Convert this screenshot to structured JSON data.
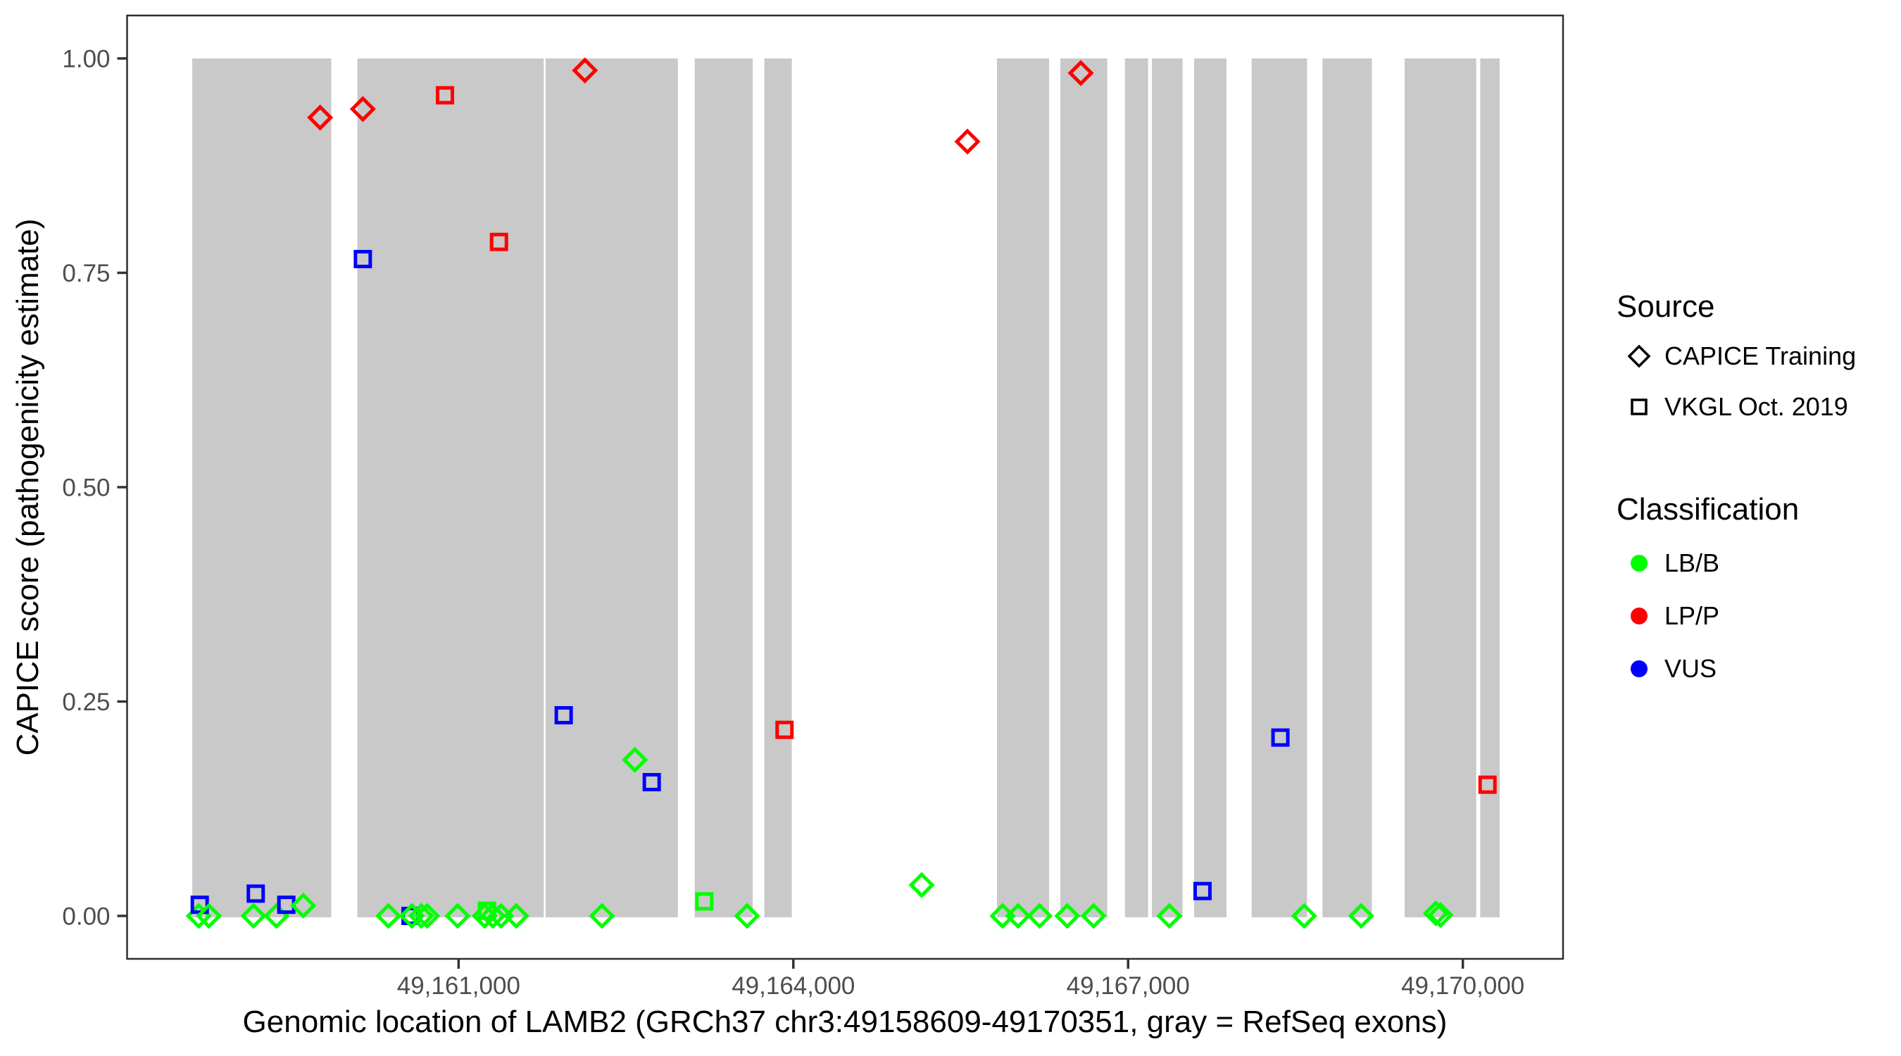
{
  "legend": {
    "source": {
      "title": "Source",
      "items": [
        {
          "label": "CAPICE Training",
          "marker": "diamond"
        },
        {
          "label": "VKGL Oct. 2019",
          "marker": "square"
        }
      ]
    },
    "classification": {
      "title": "Classification",
      "items": [
        {
          "label": "LB/B",
          "color": "#00FF00"
        },
        {
          "label": "LP/P",
          "color": "#FF0000"
        },
        {
          "label": "VUS",
          "color": "#0000FF"
        }
      ]
    }
  },
  "axes": {
    "x": {
      "label": "Genomic location of LAMB2 (GRCh37 chr3:49158609-49170351, gray = RefSeq exons)",
      "ticks": [
        {
          "value": 49161000,
          "label": "49,161,000"
        },
        {
          "value": 49164000,
          "label": "49,164,000"
        },
        {
          "value": 49167000,
          "label": "49,167,000"
        },
        {
          "value": 49170000,
          "label": "49,170,000"
        }
      ]
    },
    "y": {
      "label": "CAPICE score (pathogenicity estimate)",
      "ticks": [
        {
          "value": 1.0,
          "label": "1.00"
        },
        {
          "value": 0.75,
          "label": "0.75"
        },
        {
          "value": 0.5,
          "label": "0.50"
        },
        {
          "value": 0.25,
          "label": "0.25"
        },
        {
          "value": 0.0,
          "label": "0.00"
        }
      ]
    }
  },
  "colors": {
    "LB/B": "#00FF00",
    "LP/P": "#FF0000",
    "VUS": "#0000FF",
    "exon": "#C9C9C9",
    "panel_border": "#2E2E2E",
    "tick": "#333333",
    "tick_label": "#4D4D4D",
    "legend_glyph": "#000000"
  },
  "chart_data": {
    "type": "scatter",
    "gene": "LAMB2",
    "build": "GRCh37",
    "region": "chr3:49158609-49170351",
    "x_domain": [
      49158029,
      49170898
    ],
    "y_domain": [
      0,
      1
    ],
    "exons": [
      {
        "start": 49158613,
        "end": 49159859
      },
      {
        "start": 49160093,
        "end": 49161763
      },
      {
        "start": 49161780,
        "end": 49162965
      },
      {
        "start": 49163116,
        "end": 49163636
      },
      {
        "start": 49163740,
        "end": 49163986
      },
      {
        "start": 49165825,
        "end": 49166292
      },
      {
        "start": 49166393,
        "end": 49166813
      },
      {
        "start": 49166972,
        "end": 49167179
      },
      {
        "start": 49167213,
        "end": 49167488
      },
      {
        "start": 49167592,
        "end": 49167882
      },
      {
        "start": 49168107,
        "end": 49168604
      },
      {
        "start": 49168742,
        "end": 49169185
      },
      {
        "start": 49169478,
        "end": 49170120
      },
      {
        "start": 49170156,
        "end": 49170330
      }
    ],
    "points": [
      {
        "pos": 49158671,
        "score": 0.0,
        "source": "CAPICE Training",
        "classification": "LB/B"
      },
      {
        "pos": 49158680,
        "score": 0.013,
        "source": "VKGL Oct. 2019",
        "classification": "VUS"
      },
      {
        "pos": 49158762,
        "score": 0.0,
        "source": "CAPICE Training",
        "classification": "LB/B"
      },
      {
        "pos": 49159162,
        "score": 0.0,
        "source": "CAPICE Training",
        "classification": "LB/B"
      },
      {
        "pos": 49159182,
        "score": 0.026,
        "source": "VKGL Oct. 2019",
        "classification": "VUS"
      },
      {
        "pos": 49159368,
        "score": 0.0,
        "source": "CAPICE Training",
        "classification": "LB/B"
      },
      {
        "pos": 49159456,
        "score": 0.013,
        "source": "VKGL Oct. 2019",
        "classification": "VUS"
      },
      {
        "pos": 49159608,
        "score": 0.012,
        "source": "CAPICE Training",
        "classification": "LB/B"
      },
      {
        "pos": 49159759,
        "score": 0.931,
        "source": "CAPICE Training",
        "classification": "LP/P"
      },
      {
        "pos": 49160142,
        "score": 0.941,
        "source": "CAPICE Training",
        "classification": "LP/P"
      },
      {
        "pos": 49160142,
        "score": 0.766,
        "source": "VKGL Oct. 2019",
        "classification": "VUS"
      },
      {
        "pos": 49160371,
        "score": 0.0,
        "source": "CAPICE Training",
        "classification": "LB/B"
      },
      {
        "pos": 49160569,
        "score": 0.0,
        "source": "VKGL Oct. 2019",
        "classification": "VUS"
      },
      {
        "pos": 49160581,
        "score": 0.0,
        "source": "CAPICE Training",
        "classification": "LB/B"
      },
      {
        "pos": 49160665,
        "score": 0.0,
        "source": "CAPICE Training",
        "classification": "LB/B"
      },
      {
        "pos": 49160718,
        "score": 0.0,
        "source": "CAPICE Training",
        "classification": "LB/B"
      },
      {
        "pos": 49160878,
        "score": 0.957,
        "source": "VKGL Oct. 2019",
        "classification": "LP/P"
      },
      {
        "pos": 49160991,
        "score": 0.0,
        "source": "CAPICE Training",
        "classification": "LB/B"
      },
      {
        "pos": 49161233,
        "score": 0.0,
        "source": "CAPICE Training",
        "classification": "LB/B"
      },
      {
        "pos": 49161254,
        "score": 0.006,
        "source": "VKGL Oct. 2019",
        "classification": "LB/B"
      },
      {
        "pos": 49161307,
        "score": 0.0,
        "source": "CAPICE Training",
        "classification": "LB/B"
      },
      {
        "pos": 49161362,
        "score": 0.786,
        "source": "VKGL Oct. 2019",
        "classification": "LP/P"
      },
      {
        "pos": 49161380,
        "score": 0.0,
        "source": "CAPICE Training",
        "classification": "LB/B"
      },
      {
        "pos": 49161517,
        "score": 0.0,
        "source": "CAPICE Training",
        "classification": "LB/B"
      },
      {
        "pos": 49161942,
        "score": 0.234,
        "source": "VKGL Oct. 2019",
        "classification": "VUS"
      },
      {
        "pos": 49162132,
        "score": 0.986,
        "source": "CAPICE Training",
        "classification": "LP/P"
      },
      {
        "pos": 49162285,
        "score": 0.0,
        "source": "CAPICE Training",
        "classification": "LB/B"
      },
      {
        "pos": 49162580,
        "score": 0.182,
        "source": "CAPICE Training",
        "classification": "LB/B"
      },
      {
        "pos": 49162731,
        "score": 0.156,
        "source": "VKGL Oct. 2019",
        "classification": "VUS"
      },
      {
        "pos": 49163202,
        "score": 0.017,
        "source": "VKGL Oct. 2019",
        "classification": "LB/B"
      },
      {
        "pos": 49163585,
        "score": 0.0,
        "source": "CAPICE Training",
        "classification": "LB/B"
      },
      {
        "pos": 49163921,
        "score": 0.217,
        "source": "VKGL Oct. 2019",
        "classification": "LP/P"
      },
      {
        "pos": 49165150,
        "score": 0.036,
        "source": "CAPICE Training",
        "classification": "LB/B"
      },
      {
        "pos": 49165560,
        "score": 0.903,
        "source": "CAPICE Training",
        "classification": "LP/P"
      },
      {
        "pos": 49165875,
        "score": 0.0,
        "source": "CAPICE Training",
        "classification": "LB/B"
      },
      {
        "pos": 49166014,
        "score": 0.0,
        "source": "CAPICE Training",
        "classification": "LB/B"
      },
      {
        "pos": 49166207,
        "score": 0.0,
        "source": "CAPICE Training",
        "classification": "LB/B"
      },
      {
        "pos": 49166455,
        "score": 0.0,
        "source": "CAPICE Training",
        "classification": "LB/B"
      },
      {
        "pos": 49166576,
        "score": 0.983,
        "source": "CAPICE Training",
        "classification": "LP/P"
      },
      {
        "pos": 49166691,
        "score": 0.0,
        "source": "CAPICE Training",
        "classification": "LB/B"
      },
      {
        "pos": 49167370,
        "score": 0.0,
        "source": "CAPICE Training",
        "classification": "LB/B"
      },
      {
        "pos": 49167667,
        "score": 0.029,
        "source": "VKGL Oct. 2019",
        "classification": "VUS"
      },
      {
        "pos": 49168365,
        "score": 0.208,
        "source": "VKGL Oct. 2019",
        "classification": "VUS"
      },
      {
        "pos": 49168578,
        "score": 0.0,
        "source": "CAPICE Training",
        "classification": "LB/B"
      },
      {
        "pos": 49169089,
        "score": 0.0,
        "source": "CAPICE Training",
        "classification": "LB/B"
      },
      {
        "pos": 49169758,
        "score": 0.003,
        "source": "CAPICE Training",
        "classification": "LB/B"
      },
      {
        "pos": 49169800,
        "score": 0.001,
        "source": "CAPICE Training",
        "classification": "LB/B"
      },
      {
        "pos": 49170221,
        "score": 0.153,
        "source": "VKGL Oct. 2019",
        "classification": "LP/P"
      }
    ]
  }
}
